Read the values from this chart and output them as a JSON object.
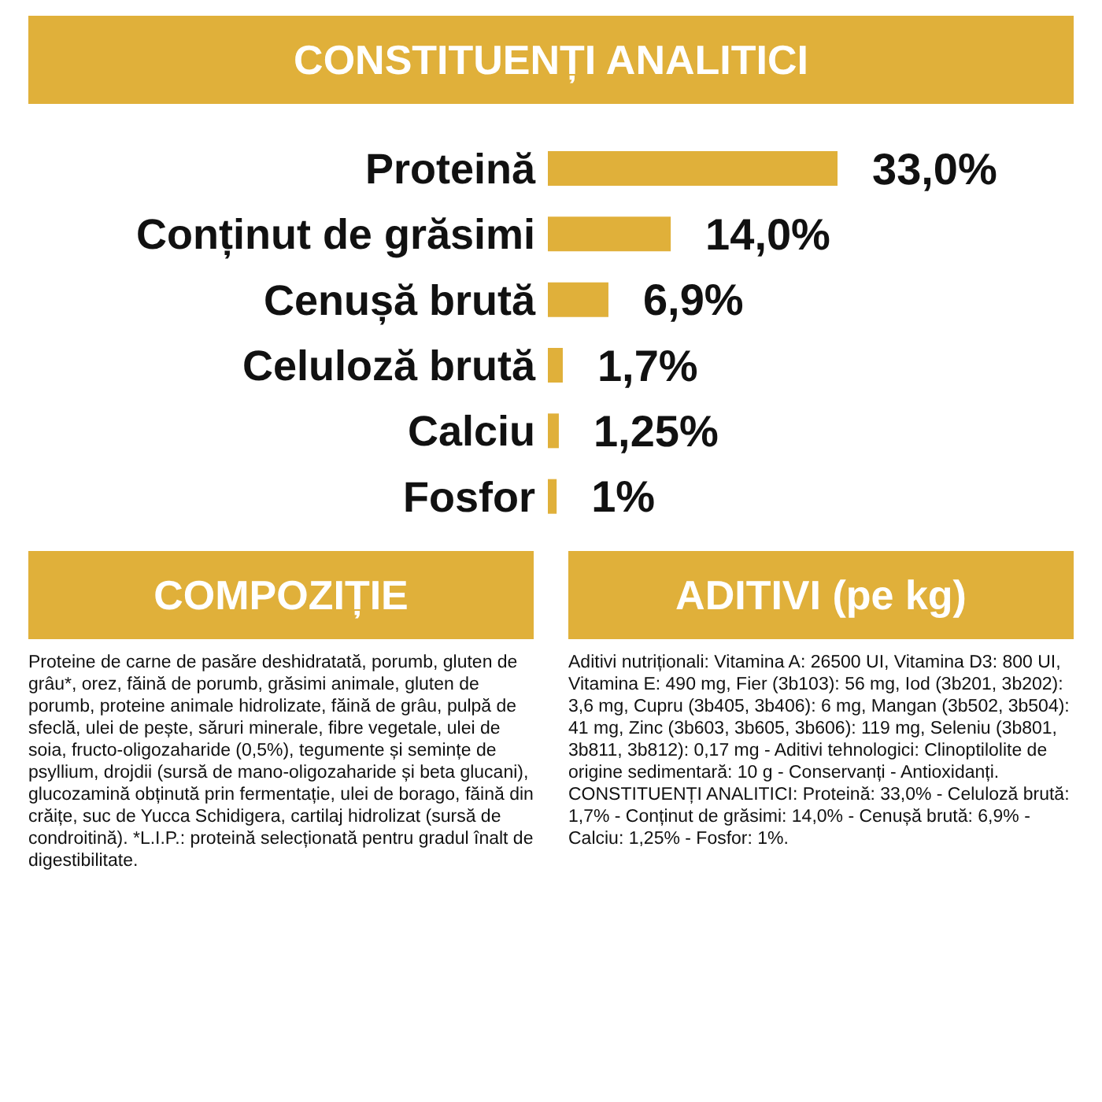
{
  "chart_data": {
    "type": "bar",
    "orientation": "horizontal",
    "title": "CONSTITUENȚI ANALITICI",
    "categories": [
      "Proteină",
      "Conținut de grăsimi",
      "Cenușă brută",
      "Celuloză brută",
      "Calciu",
      "Fosfor"
    ],
    "values": [
      33,
      14,
      6.9,
      1.7,
      1.25,
      1
    ],
    "value_labels": [
      "33,0%",
      "14,0%",
      "6,9%",
      "1,7%",
      "1,25%",
      "1%"
    ],
    "color": "#e0b03a",
    "tick_labels": "y",
    "grid": false,
    "legend": false,
    "annotations": [
      "COMPOZIȚIE",
      "Proteine de carne de pasăre deshidratată, porumb, gluten de grâu*, orez, făină de porumb, grăsimi animale, gluten de porumb, proteine animale hidrolizate, făină de grâu, pulpă de sfeclă, ulei de pește, săruri minerale, fibre vegetale, ulei de soia, fructo-oligozaharide (0,5%), tegumente și semințe de psyllium, drojdii (sursă de mano-oligozaharide și beta glucani), glucozamină obținută prin fermentație, ulei de borago, făină din crăițe, suc de Yucca Schidigera, cartilaj hidrolizat (sursă de condroitină). *L.I.P.: proteină selecționată pentru gradul înalt de digestibilitate.",
      "ADITIVI (pe kg)",
      "Aditivi nutriționali: Vitamina A: 26500 UI, Vitamina D3: 800 UI, Vitamina E: 490 mg, Fier (3b103): 56 mg, Iod (3b201, 3b202): 3,6 mg, Cupru (3b405, 3b406): 6 mg, Mangan (3b502, 3b504): 41 mg, Zinc (3b603, 3b605, 3b606): 119 mg, Seleniu (3b801, 3b811, 3b812): 0,17 mg - Aditivi tehnologici: Clinoptilolite de origine sedimentară: 10 g - Conservanți - Antioxidanți. CONSTITUENȚI ANALITICI: Proteină: 33,0% - Celuloză brută: 1,7% - Conținut de grăsimi: 14,0% - Cenușă brută: 6,9% - Calciu: 1,25% - Fosfor: 1%."
    ]
  }
}
